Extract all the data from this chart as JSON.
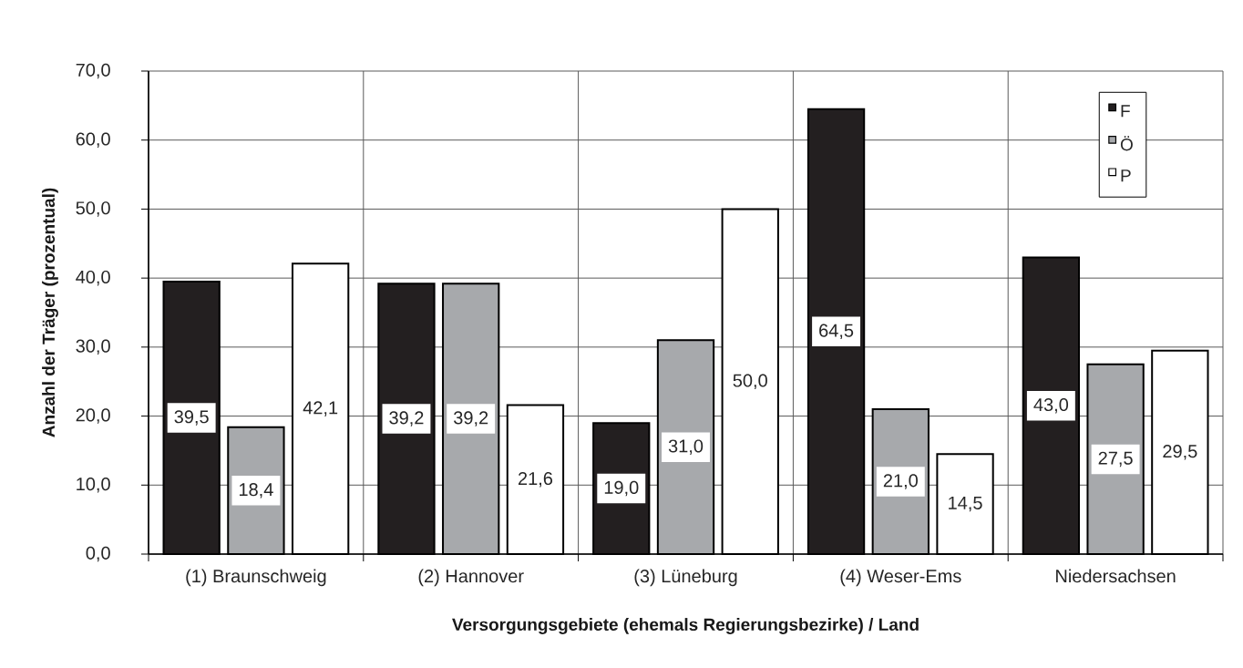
{
  "chart_data": {
    "type": "bar",
    "xlabel": "Versorgungsgebiete (ehemals Regierungsbezirke) / Land",
    "ylabel": "Anzahl der Träger (prozentual)",
    "categories": [
      "(1) Braunschweig",
      "(2) Hannover",
      "(3) Lüneburg",
      "(4) Weser-Ems",
      "Niedersachsen"
    ],
    "series": [
      {
        "name": "F",
        "color": "#231f20",
        "values": [
          39.5,
          39.2,
          19.0,
          64.5,
          43.0
        ],
        "value_labels": [
          "39,5",
          "39,2",
          "19,0",
          "64,5",
          "43,0"
        ]
      },
      {
        "name": "Ö",
        "color": "#a7a9ac",
        "values": [
          18.4,
          39.2,
          31.0,
          21.0,
          27.5
        ],
        "value_labels": [
          "18,4",
          "39,2",
          "31,0",
          "21,0",
          "27,5"
        ]
      },
      {
        "name": "P",
        "color": "#ffffff",
        "values": [
          42.1,
          21.6,
          50.0,
          14.5,
          29.5
        ],
        "value_labels": [
          "42,1",
          "21,6",
          "50,0",
          "14,5",
          "29,5"
        ]
      }
    ],
    "ylim": [
      0,
      70
    ],
    "yticks": [
      {
        "value": 0,
        "label": "0,0"
      },
      {
        "value": 10,
        "label": "10,0"
      },
      {
        "value": 20,
        "label": "20,0"
      },
      {
        "value": 30,
        "label": "30,0"
      },
      {
        "value": 40,
        "label": "40,0"
      },
      {
        "value": 50,
        "label": "50,0"
      },
      {
        "value": 60,
        "label": "60,0"
      },
      {
        "value": 70,
        "label": "70,0"
      }
    ],
    "grid": true,
    "legend": "top right"
  }
}
